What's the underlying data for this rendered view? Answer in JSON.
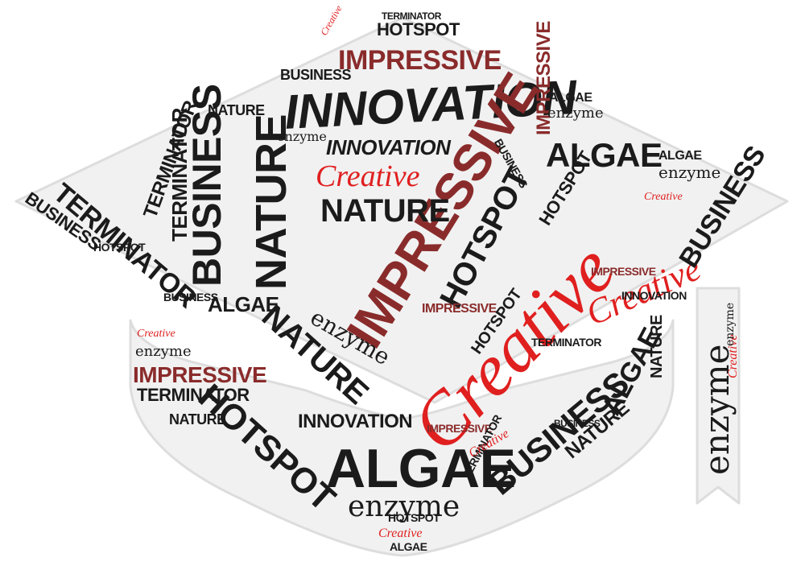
{
  "colors": {
    "black": "#1b1b1b",
    "dark_red": "#8a2b2b",
    "red": "#e01f1f",
    "grey": "#5a5a5a",
    "shape_fill": "#f1f1f1",
    "shape_edge": "#dddddd"
  },
  "words": {
    "innovation": "INNOVATION",
    "impressive": "IMPRESSIVE",
    "creative": "Creative",
    "hotspot": "HOTSPOT",
    "algae": "ALGAE",
    "business": "BUSINESS",
    "nature": "NATURE",
    "terminator": "TERMINATOR",
    "enzyme": "enzyme"
  }
}
